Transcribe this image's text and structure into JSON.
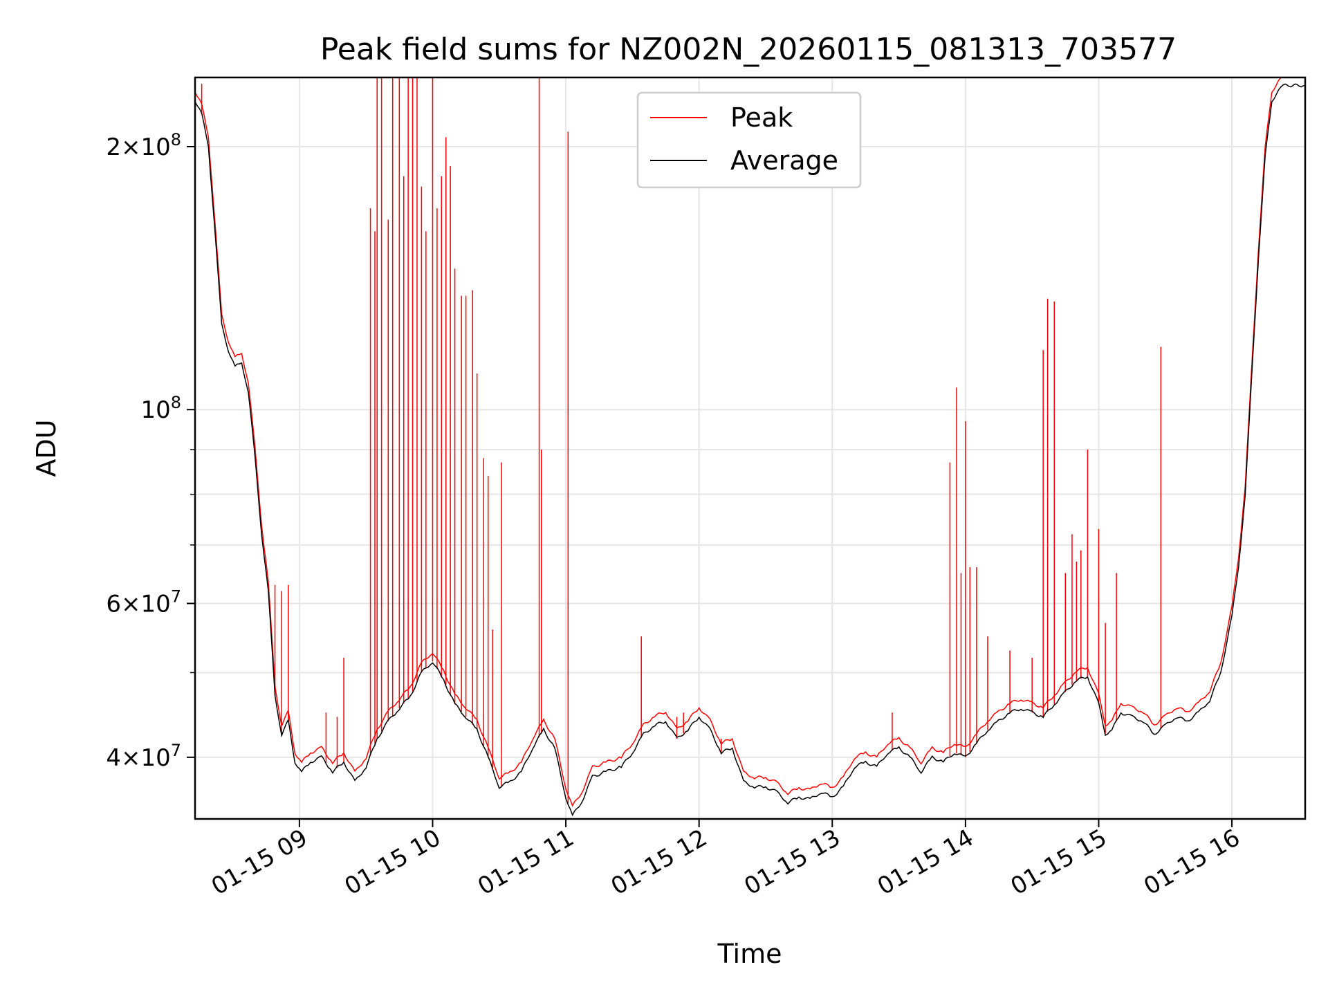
{
  "chart_data": {
    "type": "line",
    "title": "Peak field sums for NZ002N_20260115_081313_703577",
    "xlabel": "Time",
    "ylabel": "ADU",
    "y_scale": "log",
    "ylim": [
      34000000,
      240000000
    ],
    "xlim": [
      "2026-01-15 08:13",
      "2026-01-15 16:33"
    ],
    "x_ticks": [
      {
        "value": "2026-01-15 09:00",
        "label": "01-15 09"
      },
      {
        "value": "2026-01-15 10:00",
        "label": "01-15 10"
      },
      {
        "value": "2026-01-15 11:00",
        "label": "01-15 11"
      },
      {
        "value": "2026-01-15 12:00",
        "label": "01-15 12"
      },
      {
        "value": "2026-01-15 13:00",
        "label": "01-15 13"
      },
      {
        "value": "2026-01-15 14:00",
        "label": "01-15 14"
      },
      {
        "value": "2026-01-15 15:00",
        "label": "01-15 15"
      },
      {
        "value": "2026-01-15 16:00",
        "label": "01-15 16"
      }
    ],
    "y_ticks_major": [
      {
        "value": 40000000,
        "mantissa": "4",
        "exponent": "7"
      },
      {
        "value": 60000000,
        "mantissa": "6",
        "exponent": "7"
      },
      {
        "value": 100000000,
        "mantissa": "",
        "exponent": "8"
      },
      {
        "value": 200000000,
        "mantissa": "2",
        "exponent": "8"
      }
    ],
    "y_ticks_minor": [
      50000000,
      70000000,
      80000000,
      90000000
    ],
    "grid": true,
    "legend_position": "top-center",
    "colors": {
      "peak": "#ff0000",
      "average": "#000000"
    },
    "series": [
      {
        "name": "Average",
        "color": "#000000",
        "points": [
          [
            "2026-01-15 08:13",
            226000000
          ],
          [
            "2026-01-15 08:16",
            218000000
          ],
          [
            "2026-01-15 08:19",
            200000000
          ],
          [
            "2026-01-15 08:22",
            160000000
          ],
          [
            "2026-01-15 08:25",
            125000000
          ],
          [
            "2026-01-15 08:28",
            117000000
          ],
          [
            "2026-01-15 08:31",
            112000000
          ],
          [
            "2026-01-15 08:34",
            113000000
          ],
          [
            "2026-01-15 08:37",
            105000000
          ],
          [
            "2026-01-15 08:40",
            88000000
          ],
          [
            "2026-01-15 08:43",
            72000000
          ],
          [
            "2026-01-15 08:46",
            62000000
          ],
          [
            "2026-01-15 08:49",
            47000000
          ],
          [
            "2026-01-15 08:52",
            42500000
          ],
          [
            "2026-01-15 08:55",
            44000000
          ],
          [
            "2026-01-15 08:58",
            39500000
          ],
          [
            "2026-01-15 09:01",
            38500000
          ],
          [
            "2026-01-15 09:05",
            39500000
          ],
          [
            "2026-01-15 09:10",
            40000000
          ],
          [
            "2026-01-15 09:15",
            38500000
          ],
          [
            "2026-01-15 09:20",
            39500000
          ],
          [
            "2026-01-15 09:25",
            37500000
          ],
          [
            "2026-01-15 09:30",
            39000000
          ],
          [
            "2026-01-15 09:35",
            42000000
          ],
          [
            "2026-01-15 09:40",
            44000000
          ],
          [
            "2026-01-15 09:45",
            45500000
          ],
          [
            "2026-01-15 09:50",
            47000000
          ],
          [
            "2026-01-15 09:55",
            50000000
          ],
          [
            "2026-01-15 10:00",
            51500000
          ],
          [
            "2026-01-15 10:05",
            49000000
          ],
          [
            "2026-01-15 10:10",
            46000000
          ],
          [
            "2026-01-15 10:15",
            44500000
          ],
          [
            "2026-01-15 10:20",
            43000000
          ],
          [
            "2026-01-15 10:25",
            40000000
          ],
          [
            "2026-01-15 10:30",
            37000000
          ],
          [
            "2026-01-15 10:35",
            37500000
          ],
          [
            "2026-01-15 10:40",
            38500000
          ],
          [
            "2026-01-15 10:45",
            41000000
          ],
          [
            "2026-01-15 10:50",
            43000000
          ],
          [
            "2026-01-15 10:55",
            41000000
          ],
          [
            "2026-01-15 11:00",
            36000000
          ],
          [
            "2026-01-15 11:03",
            34300000
          ],
          [
            "2026-01-15 11:07",
            35500000
          ],
          [
            "2026-01-15 11:12",
            38000000
          ],
          [
            "2026-01-15 11:18",
            38500000
          ],
          [
            "2026-01-15 11:25",
            39000000
          ],
          [
            "2026-01-15 11:30",
            40500000
          ],
          [
            "2026-01-15 11:35",
            42500000
          ],
          [
            "2026-01-15 11:40",
            43500000
          ],
          [
            "2026-01-15 11:45",
            44000000
          ],
          [
            "2026-01-15 11:50",
            42000000
          ],
          [
            "2026-01-15 11:55",
            43000000
          ],
          [
            "2026-01-15 12:00",
            44500000
          ],
          [
            "2026-01-15 12:05",
            43000000
          ],
          [
            "2026-01-15 12:10",
            40500000
          ],
          [
            "2026-01-15 12:15",
            41000000
          ],
          [
            "2026-01-15 12:20",
            37500000
          ],
          [
            "2026-01-15 12:25",
            37000000
          ],
          [
            "2026-01-15 12:30",
            37000000
          ],
          [
            "2026-01-15 12:35",
            36500000
          ],
          [
            "2026-01-15 12:40",
            35500000
          ],
          [
            "2026-01-15 12:45",
            36000000
          ],
          [
            "2026-01-15 12:50",
            35800000
          ],
          [
            "2026-01-15 12:55",
            36500000
          ],
          [
            "2026-01-15 13:00",
            36000000
          ],
          [
            "2026-01-15 13:05",
            37000000
          ],
          [
            "2026-01-15 13:10",
            39000000
          ],
          [
            "2026-01-15 13:15",
            39500000
          ],
          [
            "2026-01-15 13:20",
            39000000
          ],
          [
            "2026-01-15 13:25",
            40500000
          ],
          [
            "2026-01-15 13:30",
            41000000
          ],
          [
            "2026-01-15 13:35",
            40000000
          ],
          [
            "2026-01-15 13:40",
            38500000
          ],
          [
            "2026-01-15 13:45",
            40000000
          ],
          [
            "2026-01-15 13:50",
            39500000
          ],
          [
            "2026-01-15 13:55",
            40500000
          ],
          [
            "2026-01-15 14:00",
            40000000
          ],
          [
            "2026-01-15 14:05",
            41500000
          ],
          [
            "2026-01-15 14:10",
            43000000
          ],
          [
            "2026-01-15 14:15",
            44000000
          ],
          [
            "2026-01-15 14:20",
            45000000
          ],
          [
            "2026-01-15 14:25",
            45500000
          ],
          [
            "2026-01-15 14:30",
            45000000
          ],
          [
            "2026-01-15 14:35",
            44500000
          ],
          [
            "2026-01-15 14:40",
            46000000
          ],
          [
            "2026-01-15 14:45",
            47500000
          ],
          [
            "2026-01-15 14:50",
            49000000
          ],
          [
            "2026-01-15 14:55",
            49500000
          ],
          [
            "2026-01-15 15:00",
            46000000
          ],
          [
            "2026-01-15 15:03",
            42500000
          ],
          [
            "2026-01-15 15:06",
            43000000
          ],
          [
            "2026-01-15 15:10",
            45000000
          ],
          [
            "2026-01-15 15:15",
            44500000
          ],
          [
            "2026-01-15 15:20",
            44000000
          ],
          [
            "2026-01-15 15:25",
            42500000
          ],
          [
            "2026-01-15 15:30",
            43500000
          ],
          [
            "2026-01-15 15:35",
            44500000
          ],
          [
            "2026-01-15 15:40",
            44000000
          ],
          [
            "2026-01-15 15:45",
            45000000
          ],
          [
            "2026-01-15 15:50",
            46500000
          ],
          [
            "2026-01-15 15:55",
            50000000
          ],
          [
            "2026-01-15 16:00",
            58000000
          ],
          [
            "2026-01-15 16:03",
            66000000
          ],
          [
            "2026-01-15 16:06",
            80000000
          ],
          [
            "2026-01-15 16:09",
            110000000
          ],
          [
            "2026-01-15 16:12",
            150000000
          ],
          [
            "2026-01-15 16:15",
            195000000
          ],
          [
            "2026-01-15 16:18",
            225000000
          ],
          [
            "2026-01-15 16:21",
            233000000
          ],
          [
            "2026-01-15 16:24",
            235000000
          ],
          [
            "2026-01-15 16:33",
            235000000
          ]
        ]
      },
      {
        "name": "Peak",
        "color": "#ff0000",
        "offset_ratio": 1.025,
        "spikes": [
          [
            "2026-01-15 08:16",
            236000000
          ],
          [
            "2026-01-15 08:49",
            63000000
          ],
          [
            "2026-01-15 08:52",
            62000000
          ],
          [
            "2026-01-15 08:55",
            63000000
          ],
          [
            "2026-01-15 09:12",
            45000000
          ],
          [
            "2026-01-15 09:17",
            44500000
          ],
          [
            "2026-01-15 09:20",
            52000000
          ],
          [
            "2026-01-15 09:32",
            170000000
          ],
          [
            "2026-01-15 09:34",
            160000000
          ],
          [
            "2026-01-15 09:35",
            240000000
          ],
          [
            "2026-01-15 09:37",
            240000000
          ],
          [
            "2026-01-15 09:40",
            165000000
          ],
          [
            "2026-01-15 09:42",
            240000000
          ],
          [
            "2026-01-15 09:45",
            240000000
          ],
          [
            "2026-01-15 09:47",
            185000000
          ],
          [
            "2026-01-15 09:49",
            240000000
          ],
          [
            "2026-01-15 09:51",
            240000000
          ],
          [
            "2026-01-15 09:53",
            240000000
          ],
          [
            "2026-01-15 09:55",
            180000000
          ],
          [
            "2026-01-15 09:57",
            160000000
          ],
          [
            "2026-01-15 10:00",
            240000000
          ],
          [
            "2026-01-15 10:02",
            170000000
          ],
          [
            "2026-01-15 10:04",
            185000000
          ],
          [
            "2026-01-15 10:06",
            205000000
          ],
          [
            "2026-01-15 10:08",
            190000000
          ],
          [
            "2026-01-15 10:10",
            145000000
          ],
          [
            "2026-01-15 10:13",
            135000000
          ],
          [
            "2026-01-15 10:15",
            135000000
          ],
          [
            "2026-01-15 10:18",
            137000000
          ],
          [
            "2026-01-15 10:20",
            110000000
          ],
          [
            "2026-01-15 10:23",
            88000000
          ],
          [
            "2026-01-15 10:25",
            84000000
          ],
          [
            "2026-01-15 10:27",
            56000000
          ],
          [
            "2026-01-15 10:31",
            87000000
          ],
          [
            "2026-01-15 10:48",
            240000000
          ],
          [
            "2026-01-15 10:49",
            90000000
          ],
          [
            "2026-01-15 11:01",
            208000000
          ],
          [
            "2026-01-15 11:34",
            55000000
          ],
          [
            "2026-01-15 11:50",
            44500000
          ],
          [
            "2026-01-15 11:53",
            45000000
          ],
          [
            "2026-01-15 12:10",
            42000000
          ],
          [
            "2026-01-15 13:27",
            45000000
          ],
          [
            "2026-01-15 13:53",
            87000000
          ],
          [
            "2026-01-15 13:56",
            106000000
          ],
          [
            "2026-01-15 13:58",
            65000000
          ],
          [
            "2026-01-15 14:00",
            97000000
          ],
          [
            "2026-01-15 14:02",
            66000000
          ],
          [
            "2026-01-15 14:05",
            66000000
          ],
          [
            "2026-01-15 14:10",
            55000000
          ],
          [
            "2026-01-15 14:20",
            53000000
          ],
          [
            "2026-01-15 14:30",
            52000000
          ],
          [
            "2026-01-15 14:35",
            117000000
          ],
          [
            "2026-01-15 14:37",
            134000000
          ],
          [
            "2026-01-15 14:40",
            133000000
          ],
          [
            "2026-01-15 14:45",
            65000000
          ],
          [
            "2026-01-15 14:48",
            72000000
          ],
          [
            "2026-01-15 14:50",
            67000000
          ],
          [
            "2026-01-15 14:52",
            69000000
          ],
          [
            "2026-01-15 14:55",
            90000000
          ],
          [
            "2026-01-15 15:00",
            73000000
          ],
          [
            "2026-01-15 15:03",
            57000000
          ],
          [
            "2026-01-15 15:08",
            65000000
          ],
          [
            "2026-01-15 15:28",
            118000000
          ]
        ]
      }
    ]
  }
}
